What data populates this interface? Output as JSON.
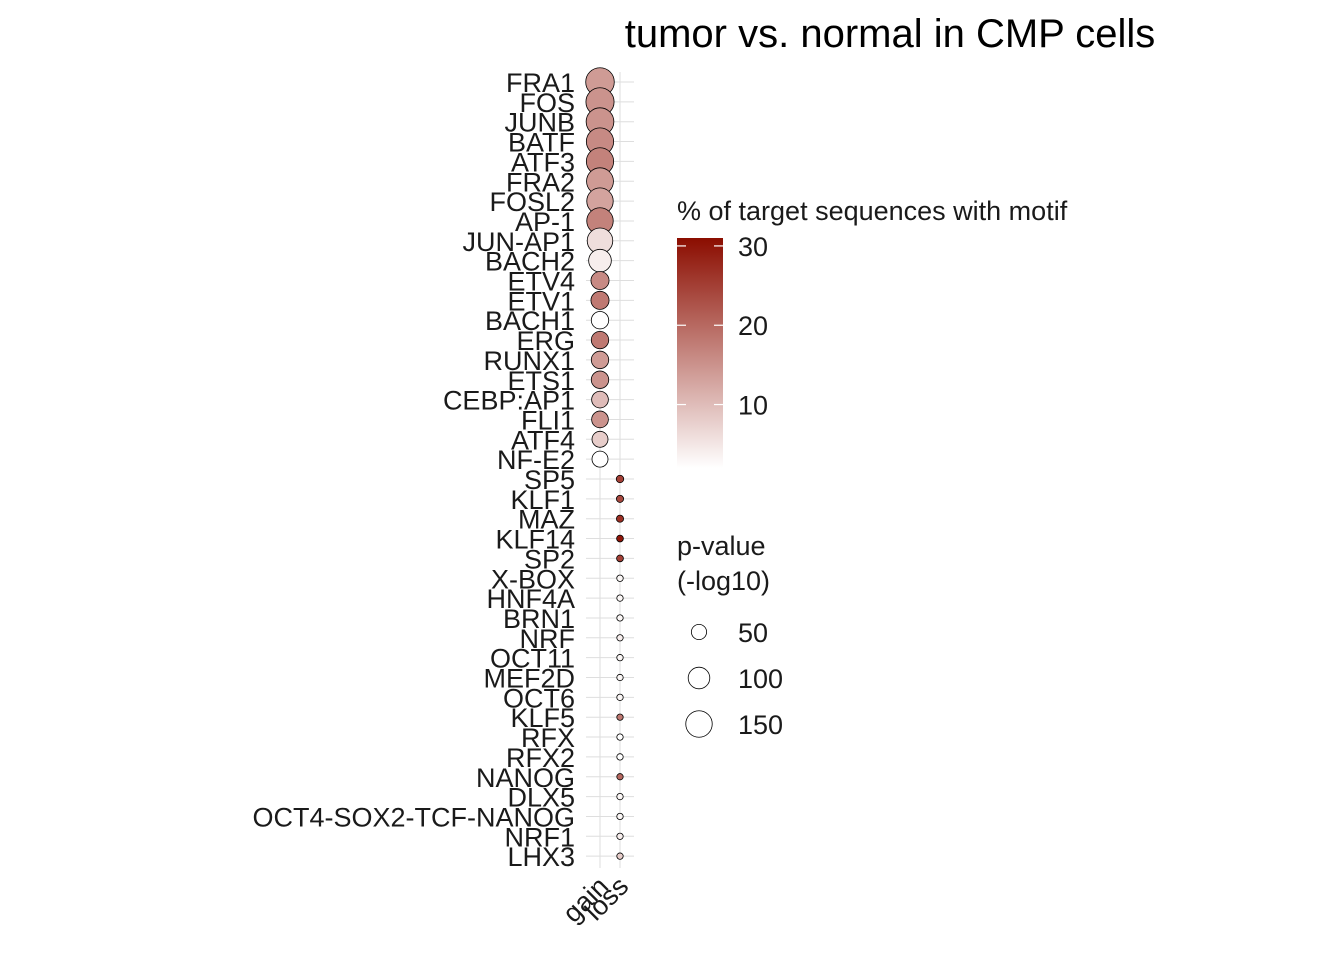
{
  "chart_data": {
    "type": "scatter",
    "title": "tumor vs. normal in CMP cells",
    "xlabel": "",
    "ylabel": "",
    "x_categories": [
      "gain",
      "loss"
    ],
    "y_categories": [
      "FRA1",
      "FOS",
      "JUNB",
      "BATF",
      "ATF3",
      "FRA2",
      "FOSL2",
      "AP-1",
      "JUN-AP1",
      "BACH2",
      "ETV4",
      "ETV1",
      "BACH1",
      "ERG",
      "RUNX1",
      "ETS1",
      "CEBP:AP1",
      "FLI1",
      "ATF4",
      "NF-E2",
      "SP5",
      "KLF1",
      "MAZ",
      "KLF14",
      "SP2",
      "X-BOX",
      "HNF4A",
      "BRN1",
      "NRF",
      "OCT11",
      "MEF2D",
      "OCT6",
      "KLF5",
      "RFX",
      "RFX2",
      "NANOG",
      "DLX5",
      "OCT4-SOX2-TCF-NANOG",
      "NRF1",
      "LHX3"
    ],
    "points": [
      {
        "x": "gain",
        "y": "FRA1",
        "percent": 14,
        "pvalue": 175
      },
      {
        "x": "gain",
        "y": "FOS",
        "percent": 15,
        "pvalue": 170
      },
      {
        "x": "gain",
        "y": "JUNB",
        "percent": 15,
        "pvalue": 165
      },
      {
        "x": "gain",
        "y": "BATF",
        "percent": 16,
        "pvalue": 160
      },
      {
        "x": "gain",
        "y": "ATF3",
        "percent": 17,
        "pvalue": 160
      },
      {
        "x": "gain",
        "y": "FRA2",
        "percent": 14,
        "pvalue": 155
      },
      {
        "x": "gain",
        "y": "FOSL2",
        "percent": 13,
        "pvalue": 150
      },
      {
        "x": "gain",
        "y": "AP-1",
        "percent": 17,
        "pvalue": 150
      },
      {
        "x": "gain",
        "y": "JUN-AP1",
        "percent": 6,
        "pvalue": 140
      },
      {
        "x": "gain",
        "y": "BACH2",
        "percent": 4,
        "pvalue": 110
      },
      {
        "x": "gain",
        "y": "ETV4",
        "percent": 16,
        "pvalue": 70
      },
      {
        "x": "gain",
        "y": "ETV1",
        "percent": 18,
        "pvalue": 70
      },
      {
        "x": "gain",
        "y": "BACH1",
        "percent": 2,
        "pvalue": 65
      },
      {
        "x": "gain",
        "y": "ERG",
        "percent": 18,
        "pvalue": 65
      },
      {
        "x": "gain",
        "y": "RUNX1",
        "percent": 14,
        "pvalue": 65
      },
      {
        "x": "gain",
        "y": "ETS1",
        "percent": 15,
        "pvalue": 65
      },
      {
        "x": "gain",
        "y": "CEBP:AP1",
        "percent": 10,
        "pvalue": 60
      },
      {
        "x": "gain",
        "y": "FLI1",
        "percent": 15,
        "pvalue": 60
      },
      {
        "x": "gain",
        "y": "ATF4",
        "percent": 8,
        "pvalue": 55
      },
      {
        "x": "gain",
        "y": "NF-E2",
        "percent": 2,
        "pvalue": 55
      },
      {
        "x": "loss",
        "y": "SP5",
        "percent": 25,
        "pvalue": 12
      },
      {
        "x": "loss",
        "y": "KLF1",
        "percent": 24,
        "pvalue": 11
      },
      {
        "x": "loss",
        "y": "MAZ",
        "percent": 27,
        "pvalue": 11
      },
      {
        "x": "loss",
        "y": "KLF14",
        "percent": 30,
        "pvalue": 10
      },
      {
        "x": "loss",
        "y": "SP2",
        "percent": 25,
        "pvalue": 10
      },
      {
        "x": "loss",
        "y": "X-BOX",
        "percent": 3,
        "pvalue": 9
      },
      {
        "x": "loss",
        "y": "HNF4A",
        "percent": 3,
        "pvalue": 8
      },
      {
        "x": "loss",
        "y": "BRN1",
        "percent": 3,
        "pvalue": 8
      },
      {
        "x": "loss",
        "y": "NRF",
        "percent": 4,
        "pvalue": 7
      },
      {
        "x": "loss",
        "y": "OCT11",
        "percent": 3,
        "pvalue": 7
      },
      {
        "x": "loss",
        "y": "MEF2D",
        "percent": 3,
        "pvalue": 7
      },
      {
        "x": "loss",
        "y": "OCT6",
        "percent": 3,
        "pvalue": 7
      },
      {
        "x": "loss",
        "y": "KLF5",
        "percent": 18,
        "pvalue": 7
      },
      {
        "x": "loss",
        "y": "RFX",
        "percent": 2,
        "pvalue": 7
      },
      {
        "x": "loss",
        "y": "RFX2",
        "percent": 2,
        "pvalue": 7
      },
      {
        "x": "loss",
        "y": "NANOG",
        "percent": 20,
        "pvalue": 7
      },
      {
        "x": "loss",
        "y": "DLX5",
        "percent": 3,
        "pvalue": 7
      },
      {
        "x": "loss",
        "y": "OCT4-SOX2-TCF-NANOG",
        "percent": 3,
        "pvalue": 7
      },
      {
        "x": "loss",
        "y": "NRF1",
        "percent": 4,
        "pvalue": 7
      },
      {
        "x": "loss",
        "y": "LHX3",
        "percent": 8,
        "pvalue": 7
      }
    ],
    "color_legend": {
      "title": "% of target sequences with motif",
      "range": [
        2,
        31
      ],
      "ticks": [
        10,
        20,
        30
      ],
      "low_color": "#ffffff",
      "high_color": "#8b0d00"
    },
    "size_legend": {
      "title_line1": "p-value",
      "title_line2": "(-log10)",
      "values": [
        50,
        100,
        150
      ]
    },
    "grid": true,
    "legend_position": "right"
  }
}
